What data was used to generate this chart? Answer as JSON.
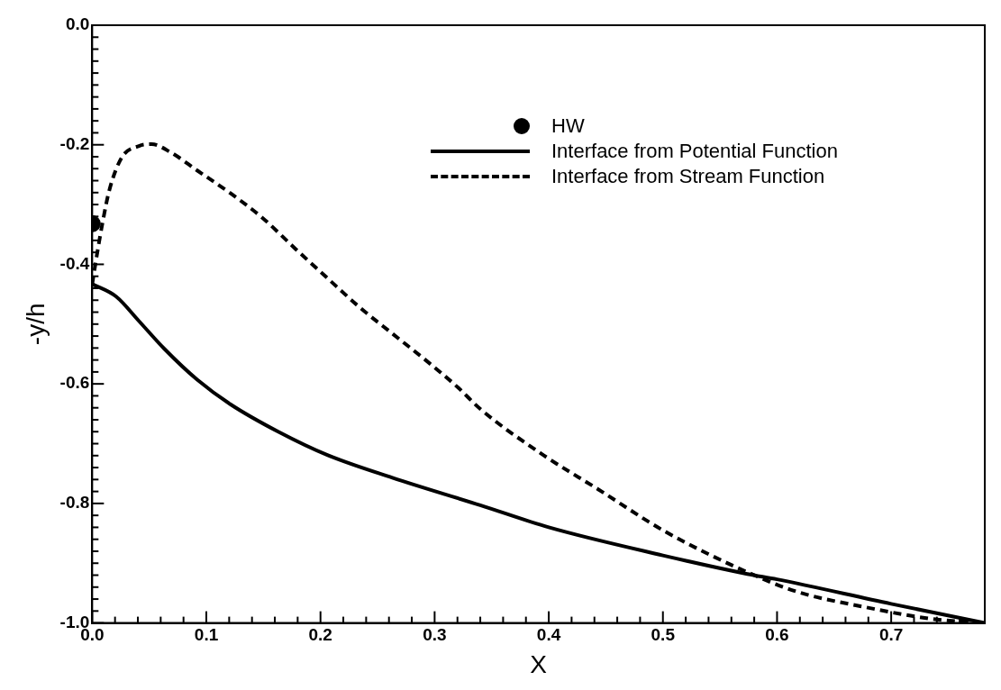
{
  "chart_data": {
    "type": "line",
    "xlabel": "X",
    "ylabel": "-y/h",
    "xlim": [
      0,
      0.782
    ],
    "ylim": [
      -1,
      0
    ],
    "xticks": [
      {
        "value": 0,
        "label": "0.0"
      },
      {
        "value": 0.02,
        "label": null
      },
      {
        "value": 0.04,
        "label": null
      },
      {
        "value": 0.06,
        "label": null
      },
      {
        "value": 0.08,
        "label": null
      },
      0.1,
      {
        "value": 0.12,
        "label": null
      },
      {
        "value": 0.14,
        "label": null
      },
      {
        "value": 0.16,
        "label": null
      },
      {
        "value": 0.18,
        "label": null
      },
      0.2,
      {
        "value": 0.22,
        "label": null
      },
      {
        "value": 0.24,
        "label": null
      },
      {
        "value": 0.26,
        "label": null
      },
      {
        "value": 0.28,
        "label": null
      },
      0.3,
      {
        "value": 0.32,
        "label": null
      },
      {
        "value": 0.34,
        "label": null
      },
      {
        "value": 0.36,
        "label": null
      },
      {
        "value": 0.38,
        "label": null
      },
      0.4,
      {
        "value": 0.42,
        "label": null
      },
      {
        "value": 0.44,
        "label": null
      },
      {
        "value": 0.46,
        "label": null
      },
      {
        "value": 0.48,
        "label": null
      },
      0.5,
      {
        "value": 0.52,
        "label": null
      },
      {
        "value": 0.54,
        "label": null
      },
      {
        "value": 0.56,
        "label": null
      },
      {
        "value": 0.58,
        "label": null
      },
      0.6,
      {
        "value": 0.62,
        "label": null
      },
      {
        "value": 0.64,
        "label": null
      },
      {
        "value": 0.66,
        "label": null
      },
      {
        "value": 0.68,
        "label": null
      },
      0.7,
      {
        "value": 0.72,
        "label": null
      },
      {
        "value": 0.74,
        "label": null
      },
      {
        "value": 0.76,
        "label": null
      }
    ],
    "yticks": [
      {
        "value": -1,
        "label": "-1.0"
      },
      {
        "value": -0.98,
        "label": null
      },
      {
        "value": -0.96,
        "label": null
      },
      {
        "value": -0.94,
        "label": null
      },
      {
        "value": -0.92,
        "label": null
      },
      {
        "value": -0.9,
        "label": null
      },
      {
        "value": -0.88,
        "label": null
      },
      {
        "value": -0.86,
        "label": null
      },
      {
        "value": -0.84,
        "label": null
      },
      {
        "value": -0.82,
        "label": null
      },
      -0.8,
      {
        "value": -0.78,
        "label": null
      },
      {
        "value": -0.76,
        "label": null
      },
      {
        "value": -0.74,
        "label": null
      },
      {
        "value": -0.72,
        "label": null
      },
      {
        "value": -0.7,
        "label": null
      },
      {
        "value": -0.68,
        "label": null
      },
      {
        "value": -0.66,
        "label": null
      },
      {
        "value": -0.64,
        "label": null
      },
      {
        "value": -0.62,
        "label": null
      },
      -0.6,
      {
        "value": -0.58,
        "label": null
      },
      {
        "value": -0.56,
        "label": null
      },
      {
        "value": -0.54,
        "label": null
      },
      {
        "value": -0.52,
        "label": null
      },
      {
        "value": -0.5,
        "label": null
      },
      {
        "value": -0.48,
        "label": null
      },
      {
        "value": -0.46,
        "label": null
      },
      {
        "value": -0.44,
        "label": null
      },
      {
        "value": -0.42,
        "label": null
      },
      -0.4,
      {
        "value": -0.38,
        "label": null
      },
      {
        "value": -0.36,
        "label": null
      },
      {
        "value": -0.34,
        "label": null
      },
      {
        "value": -0.32,
        "label": null
      },
      {
        "value": -0.3,
        "label": null
      },
      {
        "value": -0.28,
        "label": null
      },
      {
        "value": -0.26,
        "label": null
      },
      {
        "value": -0.24,
        "label": null
      },
      {
        "value": -0.22,
        "label": null
      },
      -0.2,
      {
        "value": -0.18,
        "label": null
      },
      {
        "value": -0.16,
        "label": null
      },
      {
        "value": -0.14,
        "label": null
      },
      {
        "value": -0.12,
        "label": null
      },
      {
        "value": -0.1,
        "label": null
      },
      {
        "value": -0.08,
        "label": null
      },
      {
        "value": -0.06,
        "label": null
      },
      {
        "value": -0.04,
        "label": null
      },
      {
        "value": -0.02,
        "label": null
      },
      {
        "value": 0,
        "label": "0.0"
      }
    ],
    "grid": false,
    "legend": "top right",
    "series": [
      {
        "name": "HW",
        "type": "scatter",
        "marker": "circle",
        "color": "#000000",
        "x": [
          0
        ],
        "values": [
          -0.332
        ]
      },
      {
        "name": "Interface from Potential Function",
        "line_style": "solid",
        "color": "#000000",
        "x": [
          0,
          0.021,
          0.041,
          0.063,
          0.092,
          0.121,
          0.163,
          0.206,
          0.263,
          0.34,
          0.4,
          0.5,
          0.574,
          0.6,
          0.7,
          0.782
        ],
        "values": [
          -0.433,
          -0.454,
          -0.495,
          -0.541,
          -0.593,
          -0.634,
          -0.68,
          -0.719,
          -0.757,
          -0.803,
          -0.84,
          -0.887,
          -0.918,
          -0.927,
          -0.968,
          -1.0
        ]
      },
      {
        "name": "Interface from Stream Function",
        "line_style": "dashed",
        "color": "#000000",
        "x": [
          0,
          0.005,
          0.009,
          0.015,
          0.026,
          0.041,
          0.052,
          0.069,
          0.092,
          0.121,
          0.149,
          0.178,
          0.206,
          0.235,
          0.263,
          0.292,
          0.321,
          0.34,
          0.396,
          0.443,
          0.501,
          0.574,
          0.618,
          0.676,
          0.735,
          0.782
        ],
        "values": [
          -0.433,
          -0.374,
          -0.331,
          -0.276,
          -0.221,
          -0.202,
          -0.199,
          -0.213,
          -0.243,
          -0.281,
          -0.322,
          -0.374,
          -0.423,
          -0.473,
          -0.516,
          -0.56,
          -0.607,
          -0.642,
          -0.72,
          -0.776,
          -0.846,
          -0.915,
          -0.948,
          -0.973,
          -0.993,
          -1.0
        ]
      }
    ]
  }
}
